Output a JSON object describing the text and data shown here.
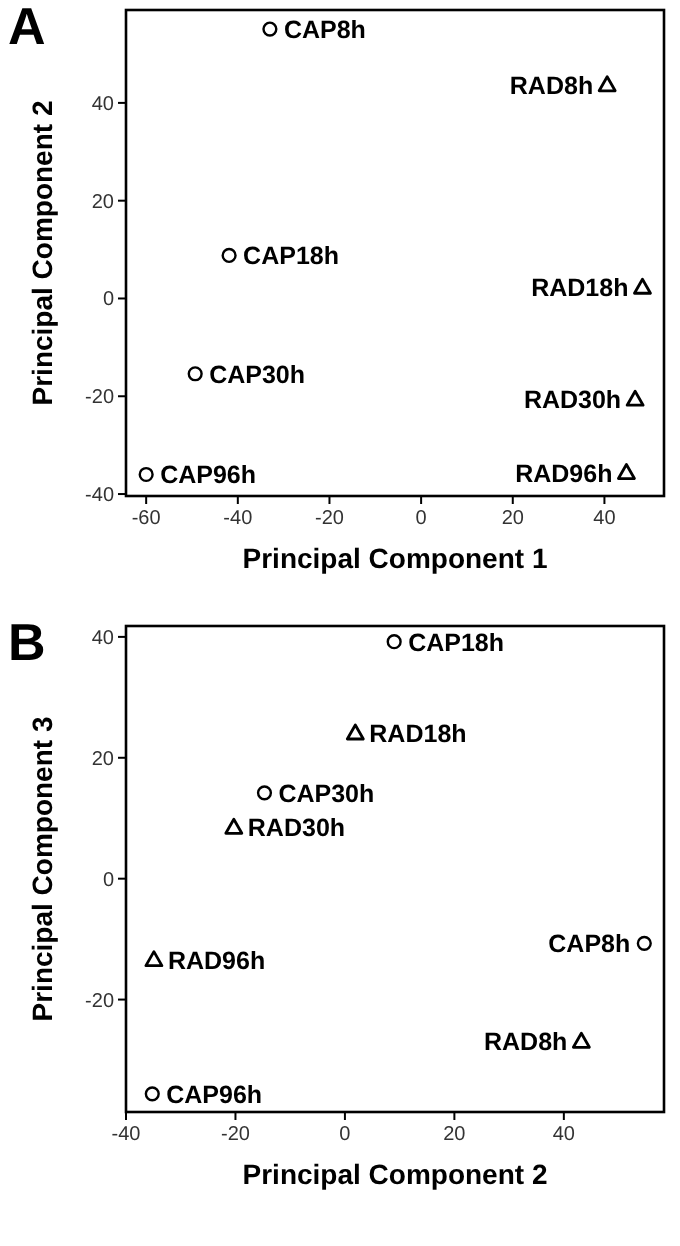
{
  "chart_data": [
    {
      "type": "scatter",
      "title": "A",
      "xlabel": "Principal Component 1",
      "ylabel": "Principal Component 2",
      "xlim": [
        -64.4,
        53
      ],
      "ylim": [
        -40.4,
        59
      ],
      "xticks": [
        -60,
        -40,
        -20,
        0,
        20,
        40
      ],
      "yticks": [
        -40,
        -20,
        0,
        20,
        40
      ],
      "series": [
        {
          "color": "#000000",
          "marker": "circle",
          "x": [
            -33,
            -41.9,
            -49.3,
            -60
          ],
          "values": [
            55.1,
            8.8,
            -15.4,
            -36
          ]
        },
        {
          "color": "#000000",
          "marker": "triangle",
          "x": [
            40.6,
            48.3,
            46.7,
            44.8
          ],
          "values": [
            43.7,
            2.3,
            -20.6,
            -35.6
          ]
        }
      ],
      "annotations": [
        {
          "text": "CAP8h",
          "x": -33,
          "y": 55.1
        },
        {
          "text": "CAP18h",
          "x": -41.9,
          "y": 8.8
        },
        {
          "text": "CAP30h",
          "x": -49.3,
          "y": -15.4
        },
        {
          "text": "CAP96h",
          "x": -60,
          "y": -36
        },
        {
          "text": "RAD8h",
          "x": 40.6,
          "y": 43.7
        },
        {
          "text": "RAD18h",
          "x": 48.3,
          "y": 2.3
        },
        {
          "text": "RAD30h",
          "x": 46.7,
          "y": -20.6
        },
        {
          "text": "RAD96h",
          "x": 44.8,
          "y": -35.6
        }
      ]
    },
    {
      "type": "scatter",
      "title": "B",
      "xlabel": "Principal Component 2",
      "ylabel": "Principal Component 3",
      "xlim": [
        -40,
        58.3
      ],
      "ylim": [
        -38.6,
        41.8
      ],
      "xticks": [
        -40,
        -20,
        0,
        20,
        40
      ],
      "yticks": [
        -20,
        0,
        20,
        40
      ],
      "series": [
        {
          "color": "#000000",
          "marker": "circle",
          "x": [
            54.7,
            9,
            -14.7,
            -35.2
          ],
          "values": [
            -10.7,
            39.2,
            14.2,
            -35.6
          ]
        },
        {
          "color": "#000000",
          "marker": "triangle",
          "x": [
            43.2,
            1.9,
            -20.3,
            -34.9
          ],
          "values": [
            -26.9,
            24.1,
            8.5,
            -13.4
          ]
        }
      ],
      "annotations": [
        {
          "text": "CAP8h",
          "x": 54.7,
          "y": -10.7
        },
        {
          "text": "CAP18h",
          "x": 9,
          "y": 39.2
        },
        {
          "text": "CAP30h",
          "x": -14.7,
          "y": 14.2
        },
        {
          "text": "CAP96h",
          "x": -35.2,
          "y": -35.6
        },
        {
          "text": "RAD8h",
          "x": 43.2,
          "y": -26.9
        },
        {
          "text": "RAD18h",
          "x": 1.9,
          "y": 24.1
        },
        {
          "text": "RAD30h",
          "x": -20.3,
          "y": 8.5
        },
        {
          "text": "RAD96h",
          "x": -34.9,
          "y": -13.4
        }
      ]
    }
  ]
}
